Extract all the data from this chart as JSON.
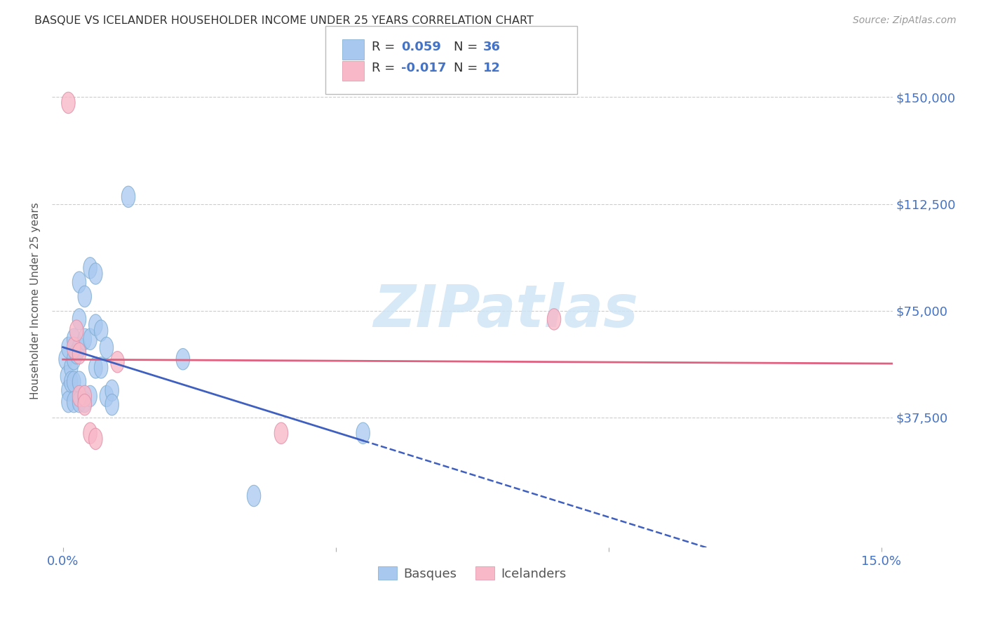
{
  "title": "BASQUE VS ICELANDER HOUSEHOLDER INCOME UNDER 25 YEARS CORRELATION CHART",
  "source": "Source: ZipAtlas.com",
  "ylabel": "Householder Income Under 25 years",
  "xlim": [
    -0.002,
    0.152
  ],
  "ylim": [
    -8000,
    165000
  ],
  "xtick_positions": [
    0.0,
    0.05,
    0.1,
    0.15
  ],
  "xtick_labels": [
    "0.0%",
    "",
    "",
    "15.0%"
  ],
  "ytick_values": [
    37500,
    75000,
    112500,
    150000
  ],
  "ytick_labels": [
    "$37,500",
    "$75,000",
    "$112,500",
    "$150,000"
  ],
  "blue_fill": "#a8c8f0",
  "blue_edge": "#7aaad0",
  "pink_fill": "#f8b8c8",
  "pink_edge": "#e090a8",
  "line_blue": "#4060c0",
  "line_pink": "#e06080",
  "legend_r_blue": "0.059",
  "legend_n_blue": "36",
  "legend_r_pink": "-0.017",
  "legend_n_pink": "12",
  "basque_x": [
    0.0005,
    0.0008,
    0.001,
    0.001,
    0.001,
    0.0015,
    0.0015,
    0.002,
    0.002,
    0.002,
    0.002,
    0.0025,
    0.003,
    0.003,
    0.003,
    0.003,
    0.003,
    0.004,
    0.004,
    0.004,
    0.005,
    0.005,
    0.005,
    0.006,
    0.006,
    0.006,
    0.007,
    0.007,
    0.008,
    0.008,
    0.009,
    0.009,
    0.012,
    0.022,
    0.035,
    0.055
  ],
  "basque_y": [
    58000,
    52000,
    62000,
    47000,
    43000,
    55000,
    50000,
    65000,
    58000,
    50000,
    43000,
    60000,
    85000,
    72000,
    62000,
    50000,
    43000,
    80000,
    65000,
    43000,
    90000,
    65000,
    45000,
    88000,
    70000,
    55000,
    68000,
    55000,
    62000,
    45000,
    47000,
    42000,
    115000,
    58000,
    10000,
    32000
  ],
  "icelander_x": [
    0.001,
    0.002,
    0.0025,
    0.003,
    0.003,
    0.004,
    0.004,
    0.005,
    0.006,
    0.01,
    0.04,
    0.09
  ],
  "icelander_y": [
    148000,
    62000,
    68000,
    60000,
    45000,
    45000,
    42000,
    32000,
    30000,
    57000,
    32000,
    72000
  ],
  "watermark_text": "ZIPatlas",
  "watermark_color": "#d0e4f5",
  "background_color": "#ffffff",
  "grid_color": "#cccccc"
}
